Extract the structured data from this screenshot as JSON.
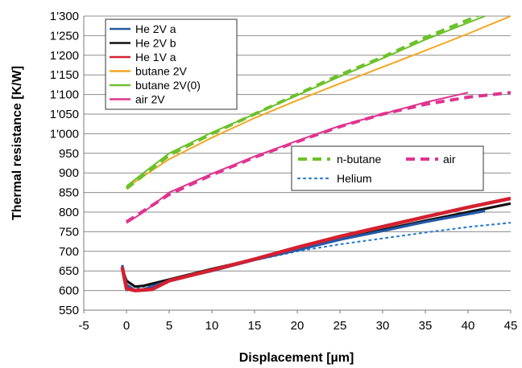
{
  "chart_data": {
    "type": "line",
    "title": "",
    "xlabel": "Displacement [µm]",
    "ylabel": "Thermal resistance [K/W]",
    "xlim": [
      -5,
      45
    ],
    "ylim": [
      550,
      1300
    ],
    "x_ticks": [
      "-5",
      "0",
      "5",
      "10",
      "15",
      "20",
      "25",
      "30",
      "35",
      "40",
      "45"
    ],
    "y_ticks": [
      "550",
      "600",
      "650",
      "700",
      "750",
      "800",
      "850",
      "900",
      "950",
      "1'000",
      "1'050",
      "1'100",
      "1'150",
      "1'200",
      "1'250",
      "1'300"
    ],
    "grid": "horizontal",
    "series": [
      {
        "name": "He 2V a",
        "style": "solid",
        "color": "#2458a6",
        "x": [
          -0.5,
          0,
          1,
          2,
          5,
          10,
          15,
          20,
          25,
          30,
          35,
          40,
          42
        ],
        "y": [
          665,
          615,
          600,
          603,
          625,
          650,
          678,
          703,
          730,
          752,
          775,
          795,
          803
        ]
      },
      {
        "name": "He 2V b",
        "style": "solid",
        "color": "#111111",
        "x": [
          -0.5,
          0,
          1,
          2,
          5,
          10,
          15,
          20,
          25,
          30,
          35,
          40,
          45
        ],
        "y": [
          655,
          625,
          610,
          612,
          628,
          655,
          680,
          705,
          730,
          755,
          778,
          800,
          822
        ]
      },
      {
        "name": "He 1V a",
        "style": "solid",
        "color": "#d42030",
        "x": [
          -0.5,
          0,
          1,
          3,
          5,
          10,
          15,
          20,
          25,
          30,
          35,
          40,
          45
        ],
        "y": [
          660,
          605,
          600,
          603,
          625,
          652,
          680,
          710,
          738,
          763,
          788,
          812,
          835
        ]
      },
      {
        "name": "butane 2V",
        "style": "solid",
        "color": "#f5a623",
        "x": [
          0,
          2,
          5,
          10,
          15,
          20,
          25,
          30,
          35,
          40,
          45
        ],
        "y": [
          863,
          892,
          935,
          990,
          1040,
          1085,
          1128,
          1170,
          1212,
          1255,
          1300
        ]
      },
      {
        "name": "butane 2V(0)",
        "style": "solid",
        "color": "#6cc12a",
        "x": [
          0,
          2,
          5,
          10,
          15,
          20,
          25,
          30,
          35,
          40,
          42
        ],
        "y": [
          866,
          900,
          950,
          1003,
          1050,
          1098,
          1146,
          1192,
          1240,
          1283,
          1300
        ]
      },
      {
        "name": "air 2V",
        "style": "solid",
        "color": "#e0338f",
        "x": [
          0,
          2,
          5,
          10,
          15,
          20,
          25,
          30,
          35,
          40
        ],
        "y": [
          772,
          800,
          850,
          898,
          942,
          982,
          1020,
          1050,
          1080,
          1105
        ]
      },
      {
        "name": "n-butane",
        "style": "dashed",
        "color": "#6cc12a",
        "x": [
          0,
          5,
          10,
          15,
          20,
          25,
          30,
          35,
          40,
          45
        ],
        "y": [
          860,
          945,
          1000,
          1050,
          1100,
          1150,
          1195,
          1245,
          1290,
          1340
        ]
      },
      {
        "name": "air",
        "style": "dashed",
        "color": "#e0338f",
        "x": [
          0,
          5,
          10,
          15,
          20,
          25,
          30,
          35,
          40,
          45
        ],
        "y": [
          775,
          845,
          895,
          940,
          980,
          1018,
          1050,
          1075,
          1093,
          1105
        ]
      },
      {
        "name": "Helium",
        "style": "dotted",
        "color": "#2f7fd1",
        "x": [
          0,
          5,
          10,
          15,
          20,
          25,
          30,
          35,
          40,
          45
        ],
        "y": [
          600,
          625,
          650,
          677,
          700,
          718,
          733,
          748,
          762,
          773
        ]
      }
    ],
    "legend_upper_left": [
      "He 2V a",
      "He 2V b",
      "He 1V a",
      "butane 2V",
      "butane 2V(0)",
      "air 2V"
    ],
    "legend_middle_right": [
      "n-butane",
      "air",
      "Helium"
    ]
  }
}
